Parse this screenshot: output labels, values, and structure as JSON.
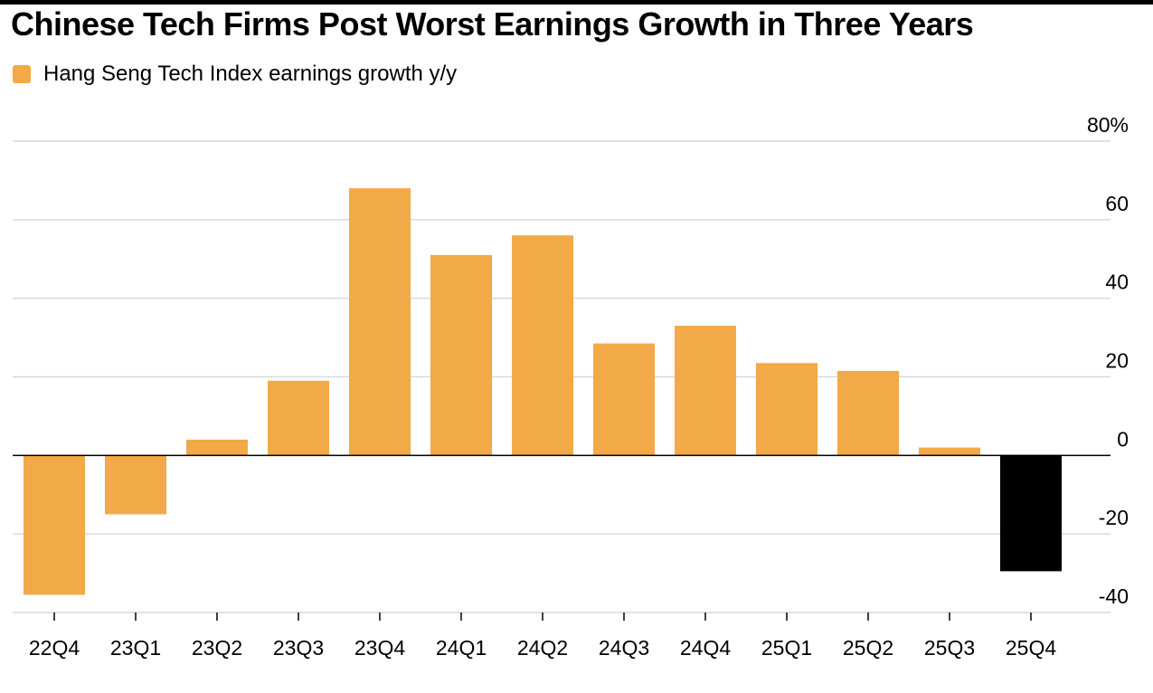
{
  "chart_data": {
    "type": "bar",
    "title": "Chinese Tech Firms Post Worst Earnings Growth in Three Years",
    "xlabel": "",
    "ylabel": "",
    "categories": [
      "22Q4",
      "23Q1",
      "23Q2",
      "23Q3",
      "23Q4",
      "24Q1",
      "24Q2",
      "24Q3",
      "24Q4",
      "25Q1",
      "25Q2",
      "25Q3",
      "25Q4"
    ],
    "series": [
      {
        "name": "Hang Seng Tech Index earnings growth y/y",
        "values": [
          -35.5,
          -15,
          4,
          19,
          68,
          51,
          56,
          28.5,
          33,
          23.5,
          21.5,
          2,
          -29.5
        ]
      }
    ],
    "highlight": {
      "category": "25Q4",
      "color": "#000000"
    },
    "ylim": [
      -40,
      80
    ],
    "yticks": [
      80,
      60,
      40,
      20,
      0,
      -20,
      -40
    ],
    "ytick_labels": [
      "80%",
      "60",
      "40",
      "20",
      "0",
      "-20",
      "-40"
    ],
    "y_axis_side": "right",
    "grid": true,
    "legend_position": "top-left",
    "colors": {
      "bar": "#f2a947",
      "highlight": "#000000",
      "grid": "#d9d9d9",
      "zero_line": "#000000"
    }
  }
}
